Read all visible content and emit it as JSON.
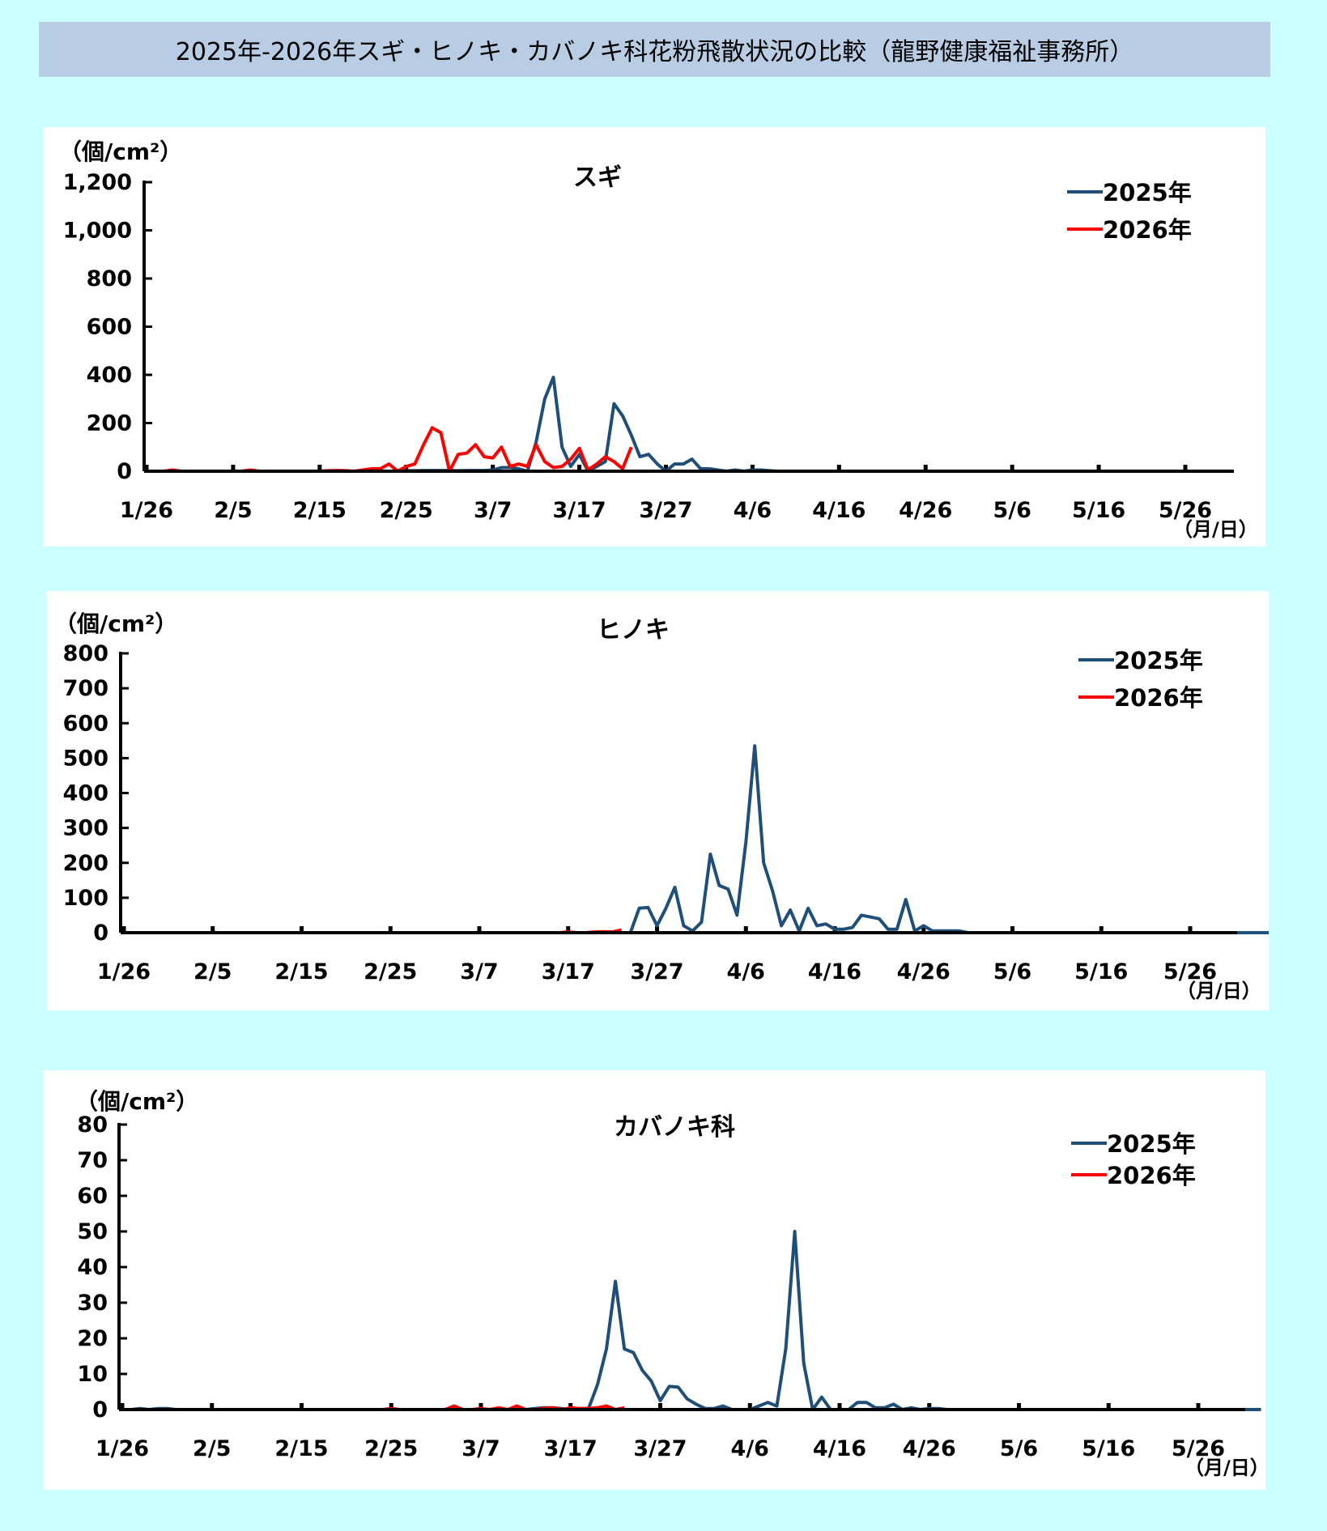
{
  "title": "2025年-2026年スギ・ヒノキ・カバノキ科花粉飛散状況の比較（龍野健康福祉事務所）",
  "colors": {
    "series_2025": "#1f4e79",
    "series_2026": "#ff0000",
    "title_bg": "#b8cce4",
    "page_bg": "#ccffff"
  },
  "chart_data": [
    {
      "type": "line",
      "title": "スギ",
      "ylabel": "（個/cm²）",
      "xlabel": "（月/日）",
      "x_start": "1/26",
      "x_step_days": 1,
      "xticks": [
        "1/26",
        "2/5",
        "2/15",
        "2/25",
        "3/7",
        "3/17",
        "3/27",
        "4/6",
        "4/16",
        "4/26",
        "5/6",
        "5/16",
        "5/26"
      ],
      "yticks": [
        "0",
        "200",
        "400",
        "600",
        "800",
        "1,000",
        "1,200"
      ],
      "ylim": [
        0,
        1200
      ],
      "legend_position": "top-right",
      "series": [
        {
          "name": "2025年",
          "values": [
            0,
            0,
            0,
            0,
            0,
            0,
            0,
            0,
            0,
            0,
            0,
            0,
            0,
            0,
            0,
            0,
            0,
            0,
            0,
            0,
            0,
            0,
            0,
            0,
            0,
            0,
            0,
            0,
            0,
            0,
            2,
            2,
            3,
            3,
            3,
            3,
            2,
            3,
            3,
            3,
            5,
            15,
            15,
            10,
            0,
            120,
            300,
            390,
            100,
            20,
            70,
            0,
            20,
            40,
            280,
            230,
            150,
            60,
            70,
            30,
            0,
            30,
            30,
            50,
            10,
            10,
            5,
            0,
            5,
            0,
            5,
            5,
            2,
            0,
            0,
            0,
            0,
            0,
            0,
            0,
            0,
            0,
            0,
            0,
            0,
            0,
            0,
            0,
            0,
            0,
            0,
            0,
            0,
            0,
            0,
            0,
            0,
            0,
            0,
            0,
            0,
            0,
            0,
            0,
            0,
            0,
            0,
            0,
            0,
            0,
            0,
            0,
            0,
            0,
            0,
            0,
            0,
            0,
            0,
            0,
            0,
            0,
            0,
            0,
            0,
            0
          ]
        },
        {
          "name": "2026年",
          "values": [
            0,
            0,
            0,
            5,
            0,
            0,
            0,
            0,
            0,
            0,
            0,
            0,
            5,
            0,
            0,
            0,
            0,
            0,
            0,
            0,
            0,
            2,
            3,
            2,
            0,
            5,
            10,
            10,
            30,
            0,
            20,
            30,
            110,
            180,
            160,
            0,
            70,
            75,
            110,
            60,
            55,
            100,
            20,
            30,
            20,
            110,
            40,
            15,
            20,
            50,
            95,
            5,
            30,
            60,
            40,
            10,
            100
          ]
        }
      ]
    },
    {
      "type": "line",
      "title": "ヒノキ",
      "ylabel": "（個/cm²）",
      "xlabel": "（月/日）",
      "x_start": "1/26",
      "x_step_days": 1,
      "xticks": [
        "1/26",
        "2/5",
        "2/15",
        "2/25",
        "3/7",
        "3/17",
        "3/27",
        "4/6",
        "4/16",
        "4/26",
        "5/6",
        "5/16",
        "5/26"
      ],
      "yticks": [
        "0",
        "100",
        "200",
        "300",
        "400",
        "500",
        "600",
        "700",
        "800"
      ],
      "ylim": [
        0,
        800
      ],
      "legend_position": "top-right",
      "series": [
        {
          "name": "2025年",
          "values": [
            0,
            0,
            0,
            0,
            0,
            0,
            0,
            0,
            0,
            0,
            0,
            0,
            0,
            0,
            0,
            0,
            0,
            0,
            0,
            0,
            0,
            0,
            0,
            0,
            0,
            0,
            0,
            0,
            0,
            0,
            0,
            0,
            0,
            0,
            0,
            0,
            0,
            0,
            0,
            0,
            0,
            0,
            0,
            0,
            0,
            0,
            0,
            0,
            0,
            0,
            0,
            0,
            0,
            0,
            0,
            0,
            0,
            0,
            70,
            72,
            20,
            70,
            130,
            20,
            5,
            30,
            225,
            135,
            125,
            50,
            260,
            535,
            200,
            120,
            20,
            65,
            5,
            70,
            20,
            25,
            10,
            10,
            15,
            50,
            45,
            40,
            10,
            10,
            95,
            5,
            20,
            5,
            5,
            5,
            5,
            0,
            0,
            0,
            0,
            0,
            0,
            0,
            0,
            0,
            0,
            0,
            0,
            0,
            0,
            0,
            0,
            0,
            0,
            0,
            0,
            0,
            0,
            0,
            0,
            0,
            0,
            0,
            0,
            0,
            0,
            0,
            0,
            0,
            0,
            0
          ]
        },
        {
          "name": "2026年",
          "values": [
            0,
            0,
            0,
            0,
            0,
            0,
            0,
            0,
            0,
            0,
            0,
            0,
            0,
            0,
            0,
            0,
            0,
            0,
            0,
            0,
            0,
            0,
            0,
            0,
            0,
            0,
            0,
            0,
            0,
            0,
            0,
            0,
            0,
            0,
            0,
            0,
            0,
            0,
            0,
            0,
            0,
            0,
            0,
            0,
            0,
            0,
            0,
            0,
            0,
            0,
            2,
            0,
            0,
            2,
            3,
            2,
            8
          ]
        }
      ]
    },
    {
      "type": "line",
      "title": "カバノキ科",
      "ylabel": "（個/cm²）",
      "xlabel": "（月/日）",
      "x_start": "1/26",
      "x_step_days": 1,
      "xticks": [
        "1/26",
        "2/5",
        "2/15",
        "2/25",
        "3/7",
        "3/17",
        "3/27",
        "4/6",
        "4/16",
        "4/26",
        "5/6",
        "5/16",
        "5/26"
      ],
      "yticks": [
        "0",
        "10",
        "20",
        "30",
        "40",
        "50",
        "60",
        "70",
        "80"
      ],
      "ylim": [
        0,
        80
      ],
      "legend_position": "top-right",
      "series": [
        {
          "name": "2025年",
          "values": [
            0,
            0,
            0.3,
            0,
            0.3,
            0.3,
            0,
            0,
            0,
            0,
            0,
            0,
            0,
            0,
            0,
            0,
            0,
            0,
            0,
            0,
            0,
            0,
            0,
            0,
            0,
            0,
            0,
            0,
            0,
            0,
            0,
            0,
            0,
            0,
            0,
            0,
            0,
            0,
            0,
            0,
            0,
            0,
            0,
            0,
            0,
            0,
            0.3,
            0.5,
            0.5,
            0.3,
            0,
            0.3,
            0.3,
            7,
            17,
            36,
            17,
            16,
            11,
            8,
            2.5,
            6.5,
            6.3,
            3,
            1.5,
            0.3,
            0.3,
            1,
            0,
            0,
            0,
            1,
            2,
            1,
            17,
            50,
            13,
            0,
            3.5,
            0,
            0,
            0,
            2,
            2,
            0.5,
            0.5,
            1.5,
            0,
            0.5,
            0,
            0.3,
            0.3,
            0,
            0,
            0,
            0,
            0,
            0,
            0,
            0,
            0,
            0,
            0,
            0,
            0,
            0,
            0,
            0,
            0,
            0,
            0,
            0,
            0,
            0,
            0,
            0,
            0,
            0,
            0,
            0,
            0,
            0,
            0,
            0,
            0,
            0,
            0,
            0
          ]
        },
        {
          "name": "2026年",
          "values": [
            0,
            0,
            0,
            0,
            0,
            0,
            0,
            0,
            0,
            0,
            0,
            0,
            0,
            0,
            0,
            0,
            0,
            0,
            0,
            0,
            0,
            0,
            0,
            0,
            0,
            0,
            0,
            0,
            0,
            0,
            0.3,
            0,
            0,
            0,
            0,
            0,
            0,
            1,
            0,
            0,
            0.3,
            0,
            0.5,
            0,
            1,
            0,
            0,
            0.3,
            0.5,
            0,
            0.5,
            0.3,
            0.3,
            0.5,
            1,
            0,
            0.5
          ]
        }
      ]
    }
  ]
}
